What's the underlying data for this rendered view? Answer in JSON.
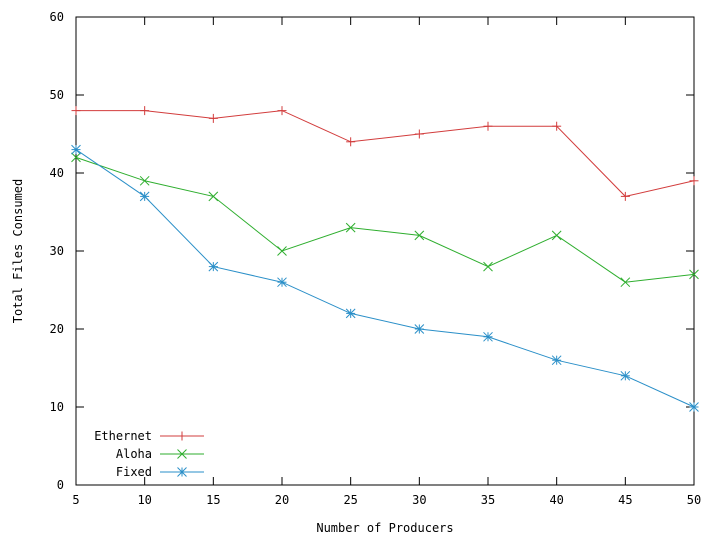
{
  "chart_data": {
    "type": "line",
    "title": "",
    "xlabel": "Number of Producers",
    "ylabel": "Total Files Consumed",
    "x": [
      5,
      10,
      15,
      20,
      25,
      30,
      35,
      40,
      45,
      50
    ],
    "xlim": [
      5,
      50
    ],
    "ylim": [
      0,
      60
    ],
    "xticks": [
      5,
      10,
      15,
      20,
      25,
      30,
      35,
      40,
      45,
      50
    ],
    "yticks": [
      0,
      10,
      20,
      30,
      40,
      50,
      60
    ],
    "grid": false,
    "legend_position": "bottom-left",
    "series": [
      {
        "name": "Ethernet",
        "color": "#d23c3c",
        "marker": "plus",
        "values": [
          48,
          48,
          47,
          48,
          44,
          45,
          46,
          46,
          37,
          39
        ]
      },
      {
        "name": "Aloha",
        "color": "#2eae2e",
        "marker": "cross",
        "values": [
          42,
          39,
          37,
          30,
          33,
          32,
          28,
          32,
          26,
          27
        ]
      },
      {
        "name": "Fixed",
        "color": "#2a8fc8",
        "marker": "star",
        "values": [
          43,
          37,
          28,
          26,
          22,
          20,
          19,
          16,
          14,
          10
        ]
      }
    ]
  }
}
